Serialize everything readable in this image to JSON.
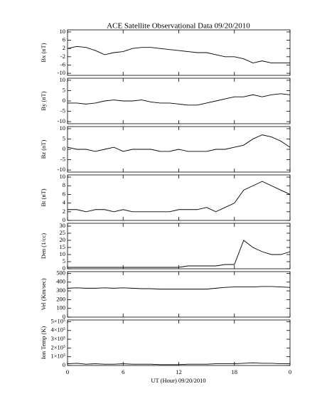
{
  "title": "ACE Satellite Observational Data   09/20/2010",
  "xlabel": "UT (Hour)  09/20/2010",
  "chart_data": [
    {
      "type": "line",
      "ylabel": "Bx (nT)",
      "color": "#000000",
      "x": [
        0,
        1,
        2,
        3,
        4,
        5,
        6,
        7,
        8,
        9,
        10,
        11,
        12,
        13,
        14,
        15,
        16,
        17,
        18,
        19,
        20,
        21,
        22,
        23,
        24
      ],
      "values": [
        2,
        3,
        2.5,
        1,
        -1,
        0,
        0.5,
        2,
        2.5,
        2.5,
        2,
        1.5,
        1,
        0.5,
        0,
        0,
        -1,
        -2,
        -2,
        -3,
        -5,
        -4,
        -5,
        -5,
        -5
      ],
      "xlim": [
        0,
        24
      ],
      "xticks": [
        0,
        6,
        12,
        18,
        {
          "value": 24,
          "label": "0"
        }
      ],
      "ylim": [
        -11,
        11
      ],
      "yticks": [
        -10,
        -6,
        -2,
        2,
        6,
        10
      ]
    },
    {
      "type": "line",
      "ylabel": "By (nT)",
      "color": "#000000",
      "x": [
        0,
        1,
        2,
        3,
        4,
        5,
        6,
        7,
        8,
        9,
        10,
        11,
        12,
        13,
        14,
        15,
        16,
        17,
        18,
        19,
        20,
        21,
        22,
        23,
        24
      ],
      "values": [
        -1,
        -1,
        -1.5,
        -1,
        0,
        0.5,
        0,
        0,
        0.5,
        -0.5,
        -1,
        -1,
        -1.5,
        -2,
        -2,
        -1,
        0,
        1,
        2,
        2,
        3,
        2,
        3,
        3.5,
        3
      ],
      "xlim": [
        0,
        24
      ],
      "xticks": [
        0,
        6,
        12,
        18,
        {
          "value": 24,
          "label": "0"
        }
      ],
      "ylim": [
        -11,
        11
      ],
      "yticks": [
        -10,
        -5,
        0,
        5,
        10
      ]
    },
    {
      "type": "line",
      "ylabel": "Bz (nT)",
      "color": "#000000",
      "x": [
        0,
        1,
        2,
        3,
        4,
        5,
        6,
        7,
        8,
        9,
        10,
        11,
        12,
        13,
        14,
        15,
        16,
        17,
        18,
        19,
        20,
        21,
        22,
        23,
        24
      ],
      "values": [
        1,
        0,
        0,
        -1,
        0,
        1,
        -1,
        0,
        0,
        0,
        -1,
        -1,
        0,
        -1,
        -1,
        -1,
        0,
        0,
        1,
        2,
        5,
        7,
        6,
        4,
        1
      ],
      "xlim": [
        0,
        24
      ],
      "xticks": [
        0,
        6,
        12,
        18,
        {
          "value": 24,
          "label": "0"
        }
      ],
      "ylim": [
        -11,
        11
      ],
      "yticks": [
        -10,
        -5,
        0,
        5,
        10
      ]
    },
    {
      "type": "line",
      "ylabel": "Bt (nT)",
      "color": "#000000",
      "x": [
        0,
        1,
        2,
        3,
        4,
        5,
        6,
        7,
        8,
        9,
        10,
        11,
        12,
        13,
        14,
        15,
        16,
        17,
        18,
        19,
        20,
        21,
        22,
        23,
        24
      ],
      "values": [
        2.5,
        2.5,
        2,
        2.5,
        2.5,
        2,
        2.5,
        2,
        2,
        2,
        2,
        2,
        2.5,
        2.5,
        2.5,
        3,
        2,
        3,
        4,
        7,
        8,
        9,
        8,
        7,
        6
      ],
      "xlim": [
        0,
        24
      ],
      "xticks": [
        0,
        6,
        12,
        18,
        {
          "value": 24,
          "label": "0"
        }
      ],
      "ylim": [
        0,
        10.5
      ],
      "yticks": [
        0,
        2,
        4,
        6,
        8,
        10
      ]
    },
    {
      "type": "line",
      "ylabel": "Den (1/cc)",
      "color": "#000000",
      "x": [
        0,
        1,
        2,
        3,
        4,
        5,
        6,
        7,
        8,
        9,
        10,
        11,
        12,
        13,
        14,
        15,
        16,
        17,
        18,
        19,
        20,
        21,
        22,
        23,
        24
      ],
      "values": [
        1,
        1,
        1,
        1,
        1,
        1,
        1,
        1,
        1,
        1,
        1,
        1,
        1,
        2,
        2,
        2,
        2,
        3,
        3,
        20,
        15,
        12,
        10,
        10,
        12
      ],
      "xlim": [
        0,
        24
      ],
      "xticks": [
        0,
        6,
        12,
        18,
        {
          "value": 24,
          "label": "0"
        }
      ],
      "ylim": [
        0,
        32
      ],
      "yticks": [
        0,
        5,
        10,
        15,
        20,
        25,
        30
      ]
    },
    {
      "type": "line",
      "ylabel": "Vel (Km/sec)",
      "color": "#000000",
      "x": [
        0,
        1,
        2,
        3,
        4,
        5,
        6,
        7,
        8,
        9,
        10,
        11,
        12,
        13,
        14,
        15,
        16,
        17,
        18,
        19,
        20,
        21,
        22,
        23,
        24
      ],
      "values": [
        330,
        335,
        330,
        330,
        335,
        330,
        335,
        330,
        325,
        325,
        320,
        320,
        320,
        320,
        320,
        320,
        330,
        340,
        345,
        345,
        345,
        350,
        350,
        345,
        340
      ],
      "xlim": [
        0,
        24
      ],
      "xticks": [
        0,
        6,
        12,
        18,
        {
          "value": 24,
          "label": "0"
        }
      ],
      "ylim": [
        0,
        520
      ],
      "yticks": [
        0,
        100,
        200,
        300,
        400,
        500
      ]
    },
    {
      "type": "line",
      "ylabel": "Ion Temp (K)",
      "color": "#000000",
      "x": [
        0,
        1,
        2,
        3,
        4,
        5,
        6,
        7,
        8,
        9,
        10,
        11,
        12,
        13,
        14,
        15,
        16,
        17,
        18,
        19,
        20,
        21,
        22,
        23,
        24
      ],
      "values": [
        20000,
        25000,
        15000,
        20000,
        15000,
        15000,
        20000,
        15000,
        15000,
        15000,
        10000,
        10000,
        10000,
        15000,
        15000,
        15000,
        20000,
        20000,
        20000,
        25000,
        30000,
        25000,
        25000,
        20000,
        20000
      ],
      "xlim": [
        0,
        24
      ],
      "xticks": [
        0,
        6,
        12,
        18,
        {
          "value": 24,
          "label": "0"
        }
      ],
      "ylim": [
        0,
        520000
      ],
      "yticks": [
        0,
        {
          "value": 100000,
          "label": "1×10⁵"
        },
        {
          "value": 200000,
          "label": "2×10⁵"
        },
        {
          "value": 300000,
          "label": "3×10⁵"
        },
        {
          "value": 400000,
          "label": "4×10⁵"
        },
        {
          "value": 500000,
          "label": "5×10⁵"
        }
      ]
    }
  ]
}
